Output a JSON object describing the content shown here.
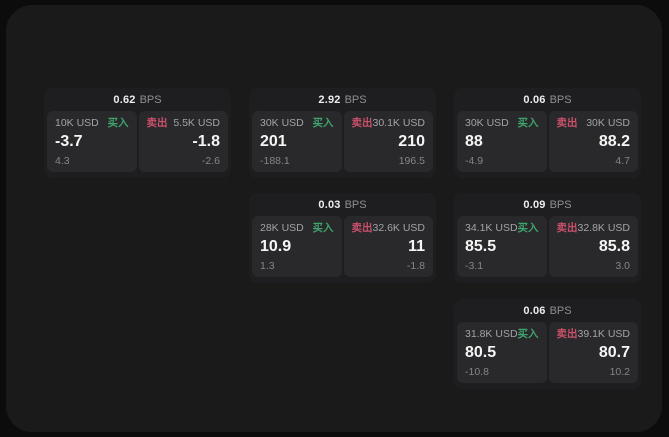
{
  "theme": {
    "page_background": "#0c0c0d",
    "window_background": "#1a1a1b",
    "card_background": "#1e1e20",
    "tile_background": "#29292b",
    "buy_accent": "#3fa36c",
    "sell_accent": "#c9506a",
    "primary_text": "#f5f5f5",
    "muted_text": "#8f8f92"
  },
  "cards": [
    {
      "header": {
        "value": "0.62",
        "unit": "BPS"
      },
      "buy": {
        "amount": "10K USD",
        "action": "买入",
        "price": "-3.7",
        "change": "4.3"
      },
      "sell": {
        "action": "卖出",
        "amount": "5.5K USD",
        "price": "-1.8",
        "change": "-2.6"
      }
    },
    {
      "header": {
        "value": "2.92",
        "unit": "BPS"
      },
      "buy": {
        "amount": "30K USD",
        "action": "买入",
        "price": "201",
        "change": "-188.1"
      },
      "sell": {
        "action": "卖出",
        "amount": "30.1K USD",
        "price": "210",
        "change": "196.5"
      }
    },
    {
      "header": {
        "value": "0.06",
        "unit": "BPS"
      },
      "buy": {
        "amount": "30K USD",
        "action": "买入",
        "price": "88",
        "change": "-4.9"
      },
      "sell": {
        "action": "卖出",
        "amount": "30K USD",
        "price": "88.2",
        "change": "4.7"
      }
    },
    {
      "header": {
        "value": "0.03",
        "unit": "BPS"
      },
      "buy": {
        "amount": "28K USD",
        "action": "买入",
        "price": "10.9",
        "change": "1.3"
      },
      "sell": {
        "action": "卖出",
        "amount": "32.6K USD",
        "price": "11",
        "change": "-1.8"
      }
    },
    {
      "header": {
        "value": "0.09",
        "unit": "BPS"
      },
      "buy": {
        "amount": "34.1K USD",
        "action": "买入",
        "price": "85.5",
        "change": "-3.1"
      },
      "sell": {
        "action": "卖出",
        "amount": "32.8K USD",
        "price": "85.8",
        "change": "3.0"
      }
    },
    {
      "header": {
        "value": "0.06",
        "unit": "BPS"
      },
      "buy": {
        "amount": "31.8K USD",
        "action": "买入",
        "price": "80.5",
        "change": "-10.8"
      },
      "sell": {
        "action": "卖出",
        "amount": "39.1K USD",
        "price": "80.7",
        "change": "10.2"
      }
    }
  ]
}
